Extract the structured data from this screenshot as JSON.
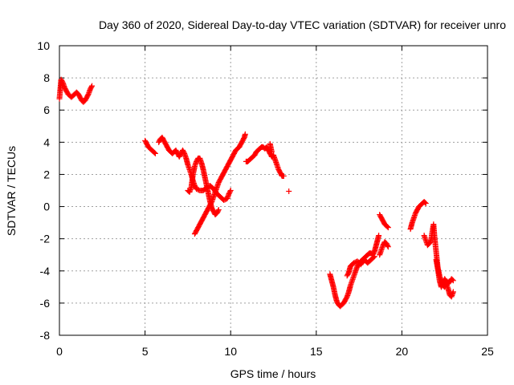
{
  "chart_data": {
    "type": "scatter",
    "title": "Day 360 of 2020, Sidereal Day-to-day VTEC variation (SDTVAR) for receiver unro",
    "xlabel": "GPS time / hours",
    "ylabel": "SDTVAR / TECUs",
    "xlim": [
      0,
      25
    ],
    "ylim": [
      -8,
      10
    ],
    "xticks": [
      0,
      5,
      10,
      15,
      20,
      25
    ],
    "yticks": [
      -8,
      -6,
      -4,
      -2,
      0,
      2,
      4,
      6,
      8,
      10
    ],
    "xtick_labels": [
      "0",
      "5",
      "10",
      "15",
      "20",
      "25"
    ],
    "ytick_labels": [
      "-8",
      "-6",
      "-4",
      "-2",
      "0",
      "2",
      "4",
      "6",
      "8",
      "10"
    ],
    "grid": true,
    "marker": "+",
    "series": [
      {
        "name": "SDTVAR",
        "color": "#ff0000",
        "tracks": [
          [
            [
              0.0,
              6.7
            ],
            [
              0.05,
              7.3
            ],
            [
              0.1,
              7.9
            ],
            [
              0.2,
              7.7
            ],
            [
              0.3,
              7.4
            ],
            [
              0.4,
              7.2
            ],
            [
              0.5,
              7.0
            ],
            [
              0.6,
              6.9
            ],
            [
              0.7,
              6.8
            ],
            [
              0.8,
              6.9
            ],
            [
              0.9,
              7.0
            ],
            [
              1.0,
              7.1
            ],
            [
              1.1,
              7.0
            ],
            [
              1.2,
              6.8
            ],
            [
              1.3,
              6.6
            ],
            [
              1.4,
              6.5
            ],
            [
              1.5,
              6.6
            ],
            [
              1.6,
              6.8
            ],
            [
              1.7,
              7.0
            ],
            [
              1.8,
              7.3
            ],
            [
              1.9,
              7.5
            ]
          ],
          [
            [
              5.0,
              4.1
            ],
            [
              5.1,
              3.9
            ],
            [
              5.2,
              3.7
            ],
            [
              5.3,
              3.6
            ],
            [
              5.4,
              3.5
            ],
            [
              5.5,
              3.4
            ],
            [
              5.6,
              3.3
            ]
          ],
          [
            [
              5.8,
              4.0
            ],
            [
              5.9,
              4.2
            ],
            [
              6.0,
              4.3
            ],
            [
              6.1,
              4.1
            ],
            [
              6.2,
              3.9
            ],
            [
              6.3,
              3.7
            ],
            [
              6.4,
              3.5
            ],
            [
              6.5,
              3.4
            ],
            [
              6.6,
              3.3
            ],
            [
              6.7,
              3.4
            ],
            [
              6.8,
              3.5
            ],
            [
              6.9,
              3.3
            ],
            [
              7.0,
              3.1
            ],
            [
              7.1,
              3.3
            ],
            [
              7.2,
              3.5
            ],
            [
              7.3,
              3.3
            ],
            [
              7.4,
              3.0
            ],
            [
              7.5,
              2.6
            ],
            [
              7.6,
              2.3
            ],
            [
              7.7,
              2.0
            ],
            [
              7.8,
              1.6
            ],
            [
              7.9,
              1.3
            ],
            [
              8.0,
              1.1
            ],
            [
              8.2,
              1.0
            ],
            [
              8.4,
              1.0
            ],
            [
              8.6,
              1.2
            ],
            [
              8.8,
              1.3
            ],
            [
              9.0,
              1.1
            ],
            [
              9.2,
              0.8
            ],
            [
              9.4,
              0.6
            ],
            [
              9.6,
              0.4
            ],
            [
              9.8,
              0.5
            ],
            [
              9.9,
              0.8
            ],
            [
              10.0,
              1.0
            ]
          ],
          [
            [
              7.5,
              1.0
            ],
            [
              7.6,
              0.9
            ],
            [
              7.7,
              1.2
            ],
            [
              7.8,
              2.0
            ],
            [
              7.9,
              2.5
            ],
            [
              8.0,
              2.8
            ],
            [
              8.1,
              3.0
            ],
            [
              8.2,
              3.0
            ],
            [
              8.3,
              2.7
            ],
            [
              8.4,
              2.3
            ],
            [
              8.5,
              1.8
            ],
            [
              8.6,
              1.3
            ],
            [
              8.7,
              0.8
            ],
            [
              8.8,
              0.3
            ],
            [
              8.9,
              -0.1
            ],
            [
              9.0,
              -0.3
            ],
            [
              9.1,
              -0.5
            ],
            [
              9.2,
              -0.4
            ],
            [
              9.3,
              -0.2
            ]
          ],
          [
            [
              7.9,
              -1.7
            ],
            [
              8.0,
              -1.5
            ],
            [
              8.1,
              -1.3
            ],
            [
              8.2,
              -1.1
            ],
            [
              8.3,
              -0.9
            ],
            [
              8.4,
              -0.7
            ],
            [
              8.5,
              -0.5
            ],
            [
              8.6,
              -0.3
            ],
            [
              8.7,
              -0.1
            ],
            [
              8.8,
              0.1
            ],
            [
              8.9,
              0.3
            ],
            [
              9.0,
              0.6
            ],
            [
              9.1,
              0.9
            ],
            [
              9.2,
              1.2
            ],
            [
              9.3,
              1.5
            ],
            [
              9.4,
              1.7
            ],
            [
              9.5,
              1.9
            ],
            [
              9.6,
              2.1
            ],
            [
              9.7,
              2.3
            ],
            [
              9.8,
              2.5
            ],
            [
              9.9,
              2.7
            ],
            [
              10.0,
              2.9
            ],
            [
              10.1,
              3.1
            ],
            [
              10.2,
              3.3
            ],
            [
              10.3,
              3.5
            ],
            [
              10.4,
              3.6
            ],
            [
              10.5,
              3.7
            ],
            [
              10.6,
              3.9
            ],
            [
              10.7,
              4.1
            ],
            [
              10.8,
              4.3
            ],
            [
              10.85,
              4.5
            ]
          ],
          [
            [
              10.9,
              2.8
            ],
            [
              11.0,
              2.8
            ],
            [
              11.1,
              2.9
            ],
            [
              11.2,
              3.0
            ],
            [
              11.3,
              3.1
            ],
            [
              11.4,
              3.2
            ],
            [
              11.5,
              3.4
            ],
            [
              11.6,
              3.5
            ],
            [
              11.7,
              3.6
            ],
            [
              11.8,
              3.7
            ],
            [
              11.9,
              3.7
            ],
            [
              12.0,
              3.6
            ],
            [
              12.1,
              3.7
            ],
            [
              12.2,
              3.5
            ],
            [
              12.3,
              3.3
            ],
            [
              12.4,
              3.1
            ],
            [
              12.5,
              3.2
            ],
            [
              12.6,
              2.9
            ],
            [
              12.7,
              2.6
            ],
            [
              12.8,
              2.3
            ],
            [
              12.9,
              2.1
            ],
            [
              13.0,
              1.9
            ],
            [
              13.1,
              1.9
            ]
          ],
          [
            [
              12.3,
              3.9
            ],
            [
              12.4,
              3.4
            ]
          ],
          [
            [
              13.4,
              0.95
            ]
          ],
          [
            [
              15.8,
              -4.2
            ],
            [
              15.9,
              -4.6
            ],
            [
              16.0,
              -5.0
            ],
            [
              16.1,
              -5.5
            ],
            [
              16.2,
              -5.9
            ],
            [
              16.3,
              -6.1
            ],
            [
              16.4,
              -6.2
            ],
            [
              16.5,
              -6.1
            ],
            [
              16.6,
              -6.0
            ],
            [
              16.7,
              -5.8
            ],
            [
              16.8,
              -5.6
            ],
            [
              16.9,
              -5.3
            ],
            [
              17.0,
              -4.9
            ],
            [
              17.1,
              -4.6
            ],
            [
              17.2,
              -4.3
            ],
            [
              17.3,
              -4.0
            ],
            [
              17.4,
              -3.7
            ],
            [
              17.5,
              -3.6
            ],
            [
              17.6,
              -3.4
            ],
            [
              17.7,
              -3.3
            ],
            [
              17.8,
              -3.2
            ],
            [
              17.9,
              -3.1
            ],
            [
              18.0,
              -3.0
            ],
            [
              18.1,
              -2.9
            ],
            [
              18.2,
              -2.9
            ],
            [
              18.3,
              -3.0
            ],
            [
              18.4,
              -2.8
            ],
            [
              18.5,
              -2.4
            ],
            [
              18.6,
              -2.0
            ],
            [
              18.65,
              -1.8
            ]
          ],
          [
            [
              16.8,
              -4.3
            ],
            [
              16.9,
              -4.1
            ],
            [
              17.0,
              -3.7
            ],
            [
              17.2,
              -3.5
            ],
            [
              17.4,
              -3.4
            ],
            [
              17.6,
              -3.6
            ],
            [
              17.8,
              -3.3
            ],
            [
              18.0,
              -3.5
            ],
            [
              18.2,
              -3.3
            ],
            [
              18.4,
              -3.1
            ]
          ],
          [
            [
              18.7,
              -0.5
            ],
            [
              18.8,
              -0.7
            ],
            [
              18.9,
              -0.9
            ],
            [
              19.0,
              -1.1
            ],
            [
              19.1,
              -1.2
            ],
            [
              19.2,
              -1.3
            ]
          ],
          [
            [
              18.7,
              -3.0
            ],
            [
              18.8,
              -2.7
            ],
            [
              18.9,
              -2.4
            ],
            [
              19.0,
              -2.2
            ],
            [
              19.1,
              -2.3
            ],
            [
              19.2,
              -2.5
            ]
          ],
          [
            [
              20.5,
              -1.4
            ],
            [
              20.6,
              -1.0
            ],
            [
              20.7,
              -0.7
            ],
            [
              20.8,
              -0.4
            ],
            [
              20.9,
              -0.2
            ],
            [
              21.0,
              0.0
            ],
            [
              21.1,
              0.1
            ],
            [
              21.2,
              0.2
            ],
            [
              21.3,
              0.3
            ],
            [
              21.4,
              0.2
            ]
          ],
          [
            [
              21.3,
              -1.8
            ],
            [
              21.4,
              -2.1
            ],
            [
              21.5,
              -2.4
            ],
            [
              21.6,
              -2.3
            ],
            [
              21.7,
              -2.1
            ],
            [
              21.8,
              -1.4
            ],
            [
              21.85,
              -1.1
            ],
            [
              21.9,
              -1.8
            ],
            [
              22.0,
              -2.8
            ],
            [
              22.1,
              -3.8
            ],
            [
              22.2,
              -4.3
            ],
            [
              22.3,
              -4.6
            ],
            [
              22.4,
              -4.9
            ],
            [
              22.5,
              -5.0
            ],
            [
              22.6,
              -4.8
            ],
            [
              22.7,
              -5.1
            ],
            [
              22.8,
              -5.5
            ],
            [
              22.9,
              -5.6
            ],
            [
              23.0,
              -5.3
            ]
          ],
          [
            [
              22.0,
              -3.3
            ],
            [
              22.1,
              -3.9
            ],
            [
              22.2,
              -4.6
            ],
            [
              22.3,
              -5.0
            ],
            [
              22.5,
              -4.5
            ],
            [
              22.7,
              -4.8
            ],
            [
              22.9,
              -4.5
            ],
            [
              23.0,
              -4.6
            ]
          ]
        ]
      }
    ]
  }
}
